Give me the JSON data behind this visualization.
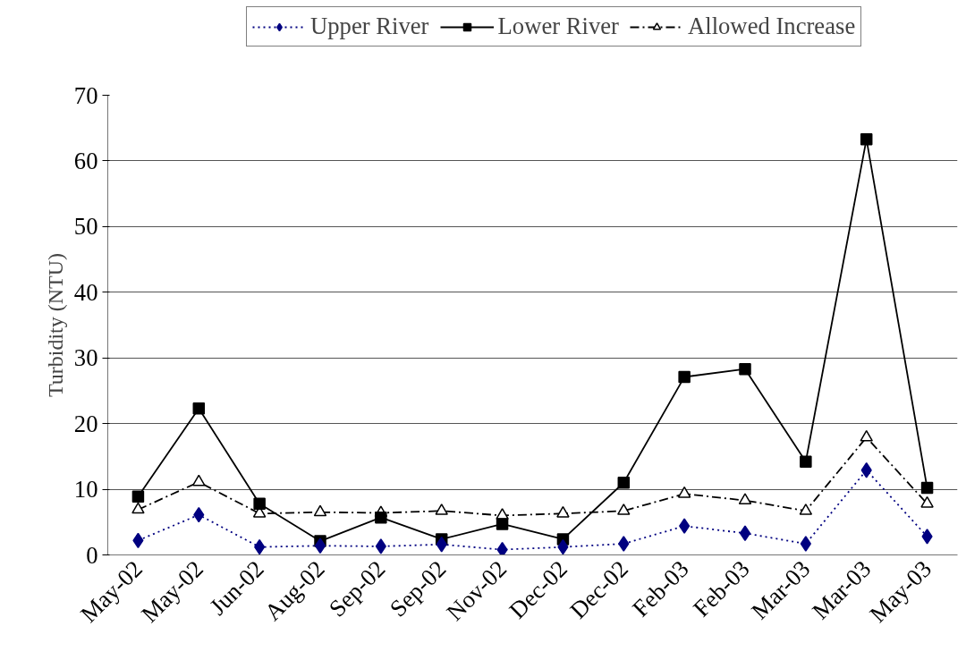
{
  "chart_data": {
    "type": "line",
    "ylabel": "Turbidity (NTU)",
    "categories": [
      "May-02",
      "May-02",
      "Jun-02",
      "Aug-02",
      "Sep-02",
      "Sep-02",
      "Nov-02",
      "Dec-02",
      "Dec-02",
      "Feb-03",
      "Feb-03",
      "Mar-03",
      "Mar-03",
      "May-03"
    ],
    "series": [
      {
        "name": "Upper River",
        "color": "#000080",
        "marker": "diamond",
        "line_style": "dotted",
        "values": [
          2.2,
          6.1,
          1.2,
          1.4,
          1.3,
          1.6,
          0.8,
          1.2,
          1.7,
          4.4,
          3.3,
          1.7,
          12.9,
          2.8
        ]
      },
      {
        "name": "Lower River",
        "color": "#000000",
        "marker": "square",
        "line_style": "solid",
        "values": [
          8.9,
          22.3,
          7.8,
          2.1,
          5.7,
          2.4,
          4.7,
          2.4,
          11.0,
          27.1,
          28.3,
          14.2,
          63.3,
          10.2
        ]
      },
      {
        "name": "Allowed Increase",
        "color": "#000000",
        "marker": "triangle",
        "line_style": "dashed",
        "values": [
          6.9,
          11.1,
          6.3,
          6.5,
          6.4,
          6.7,
          6.0,
          6.3,
          6.7,
          9.3,
          8.3,
          6.7,
          17.9,
          7.8
        ]
      }
    ],
    "ylim": [
      0,
      70
    ],
    "yticks": [
      0,
      10,
      20,
      30,
      40,
      50,
      60,
      70
    ],
    "grid": "y",
    "legend": "top"
  }
}
